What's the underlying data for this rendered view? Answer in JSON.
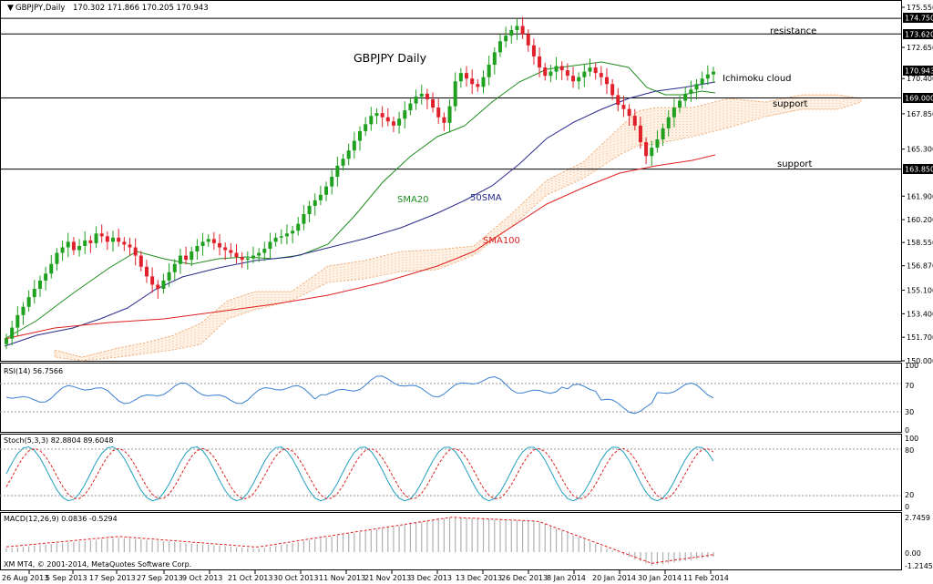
{
  "window": {
    "symbol_title": "GBPJPY,Daily",
    "ohlc": "170.302 171.866 170.205 170.943",
    "copyright": "XM MT4, © 2001-2014, MetaQuotes Software Corp."
  },
  "annotations": {
    "main_title": "GBPJPY Daily",
    "resistance": "resistance",
    "ichimoku": "Ichimoku cloud",
    "support1": "support",
    "support2": "support",
    "sma20": "SMA20",
    "sma50": "50SMA",
    "sma100": "SMA100"
  },
  "price_axis": [
    "175.550",
    "172.650",
    "170.400",
    "167.850",
    "165.300",
    "161.900",
    "160.200",
    "158.550",
    "156.870",
    "155.100",
    "153.400",
    "151.700",
    "150.000"
  ],
  "price_labels": {
    "p174": "174.750",
    "p173": "173.620",
    "p170": "170.943",
    "p169": "169.000",
    "p163": "163.850"
  },
  "date_axis": [
    "26 Aug 2013",
    "5 Sep 2013",
    "17 Sep 2013",
    "27 Sep 2013",
    "9 Oct 2013",
    "21 Oct 2013",
    "30 Oct 2013",
    "11 Nov 2013",
    "21 Nov 2013",
    "3 Dec 2013",
    "13 Dec 2013",
    "26 Dec 2013",
    "8 Jan 2014",
    "20 Jan 2014",
    "30 Jan 2014",
    "11 Feb 2014"
  ],
  "rsi": {
    "label": "RSI(14) 56.7566",
    "levels": [
      "100",
      "70",
      "30",
      "0"
    ]
  },
  "stoch": {
    "label": "Stoch(5,3,3) 82.8804 89.6048",
    "levels": [
      "100",
      "80",
      "20",
      "0"
    ]
  },
  "macd": {
    "label": "MACD(12,26,9) 0.0836 -0.5294",
    "levels": [
      "2.7459",
      "0.00",
      "-1.2145"
    ]
  },
  "colors": {
    "bull": "#1fa01f",
    "bear": "#e0202a",
    "sma20": "#1e8c1e",
    "sma50": "#2a2a8c",
    "sma100": "#e02020",
    "cloud": "#f0a060",
    "rsi": "#3a7fd0",
    "stoch_main": "#20a0c0",
    "stoch_signal": "#e02020",
    "macd_signal": "#e02020",
    "macd_hist": "#b0b0b0"
  }
}
